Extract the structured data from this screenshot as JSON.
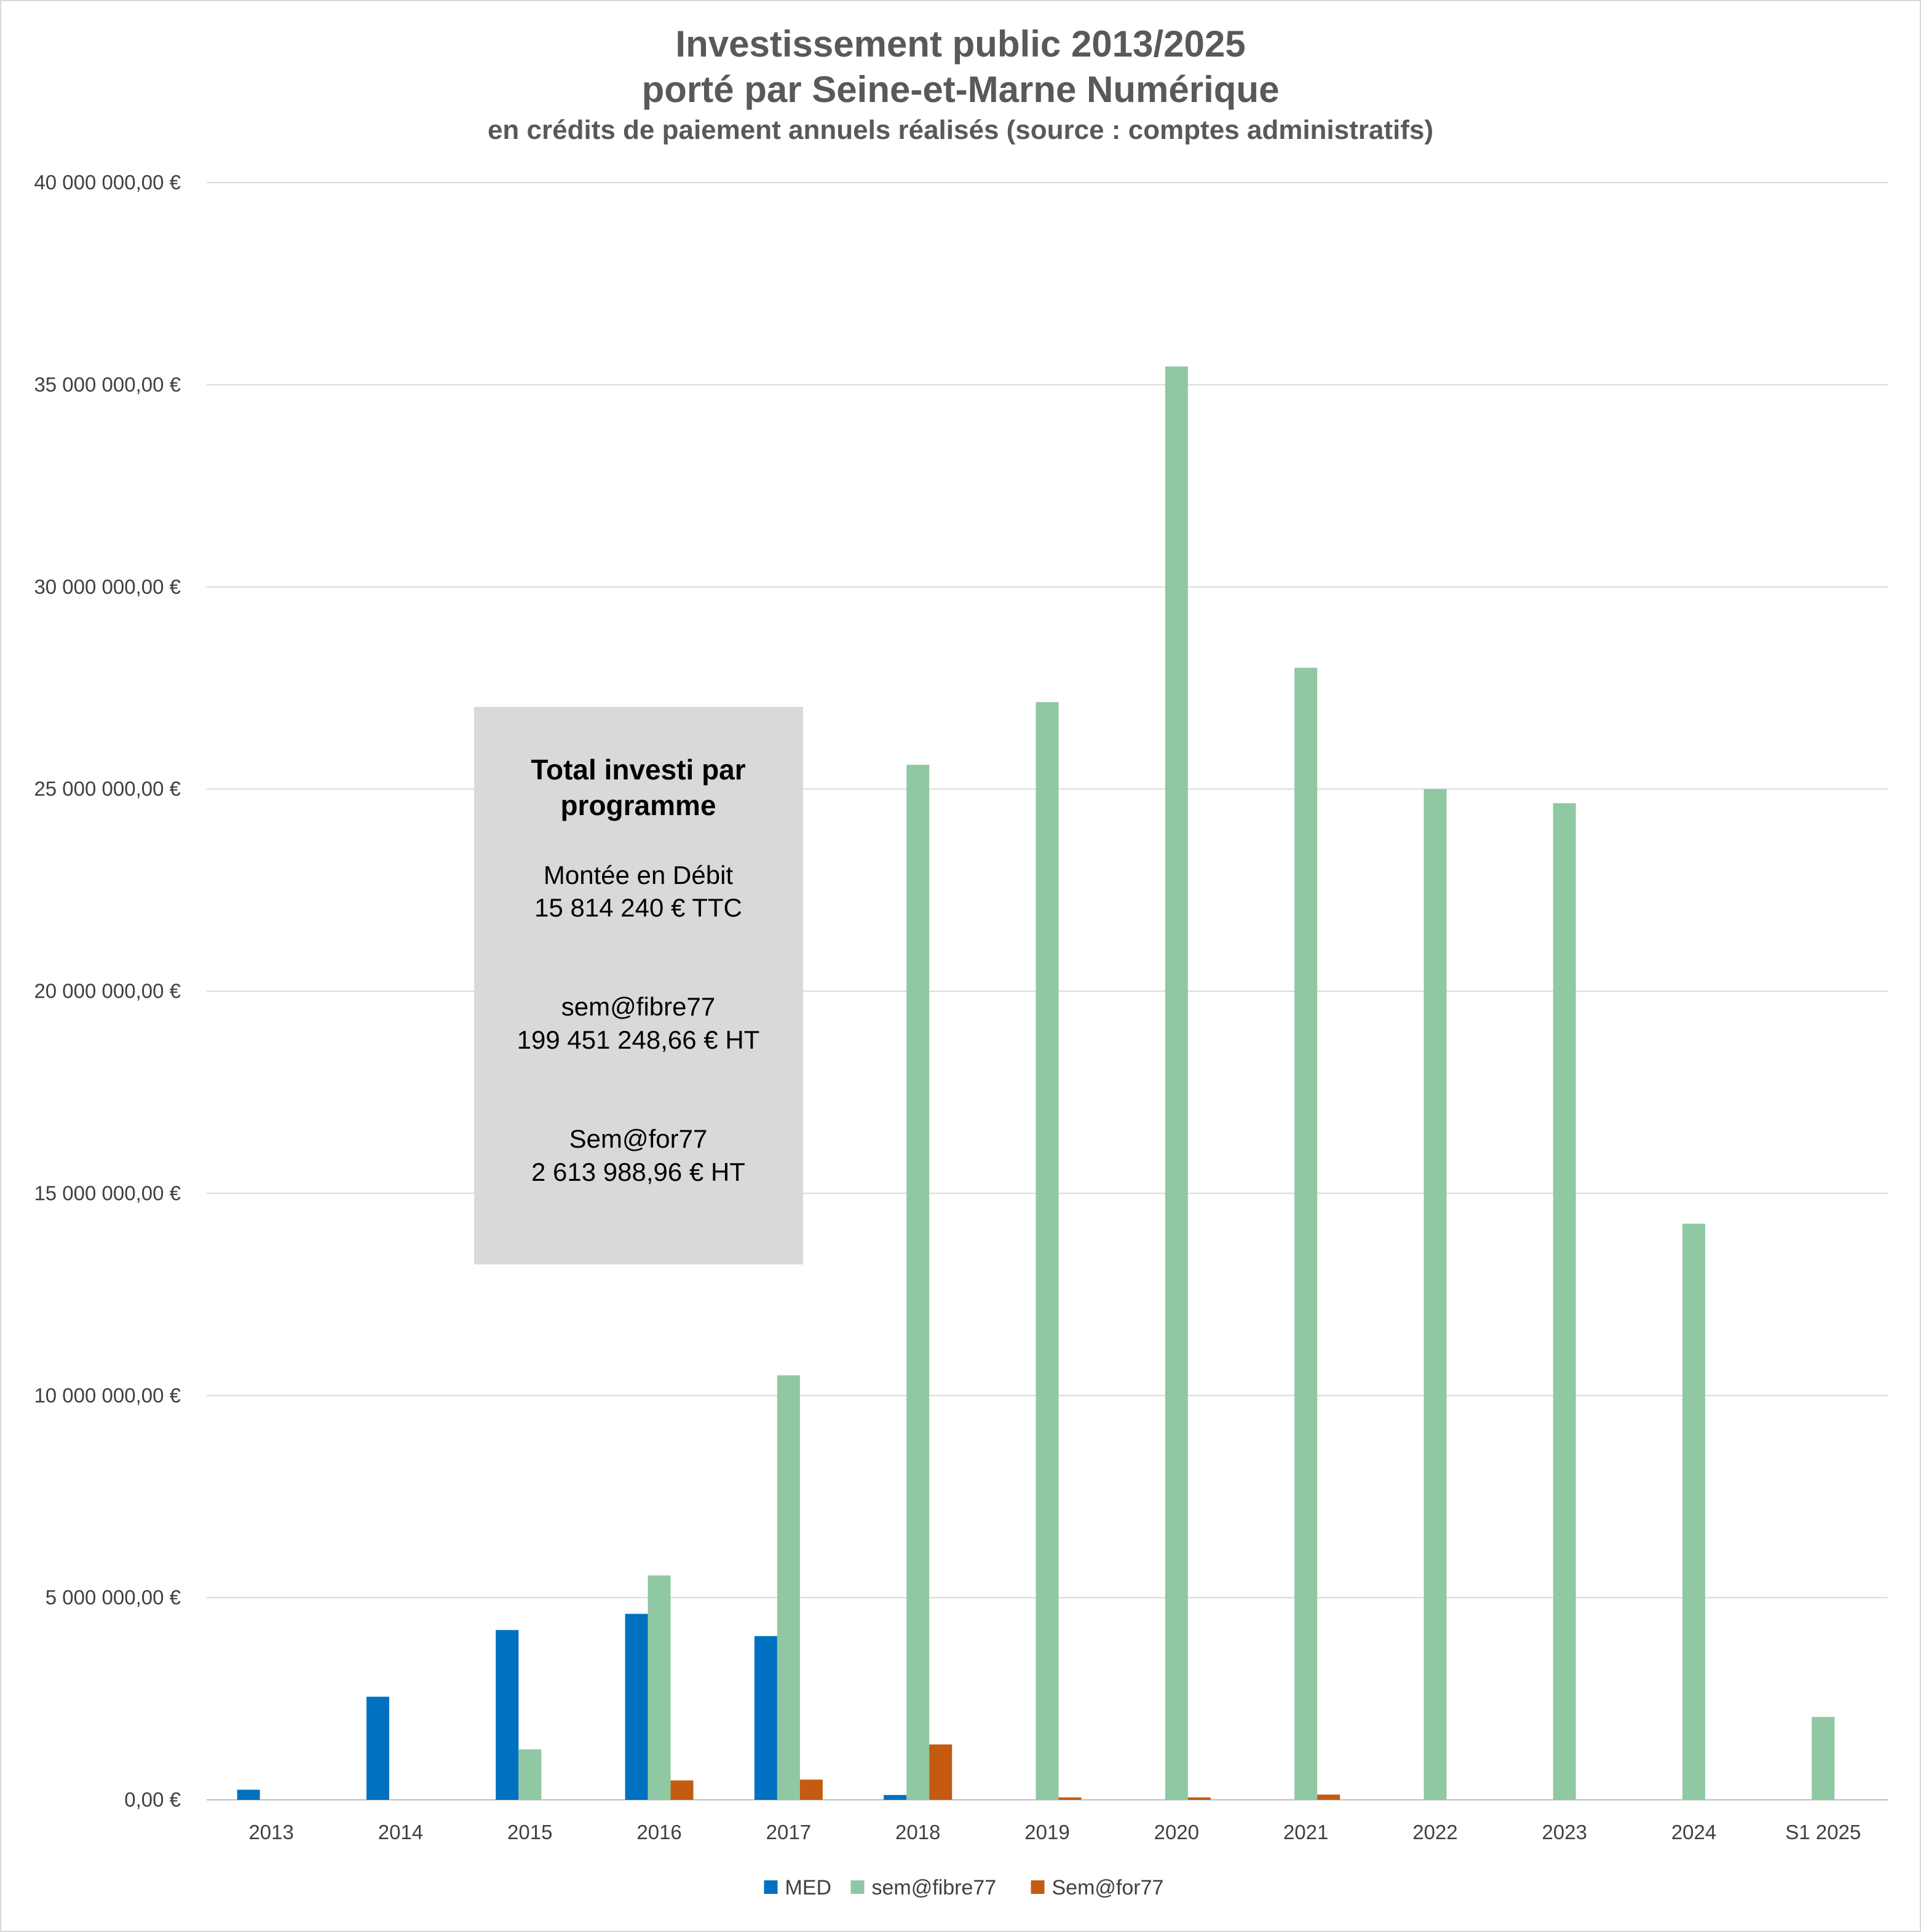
{
  "chart_data": {
    "type": "bar",
    "title_line1": "Investissement public 2013/2025",
    "title_line2": "porté par Seine-et-Marne Numérique",
    "subtitle": "en crédits de paiement annuels réalisés (source : comptes administratifs)",
    "categories": [
      "2013",
      "2014",
      "2015",
      "2016",
      "2017",
      "2018",
      "2019",
      "2020",
      "2021",
      "2022",
      "2023",
      "2024",
      "S1 2025"
    ],
    "series": [
      {
        "name": "MED",
        "color": "#0070c0",
        "values": [
          250000,
          2550000,
          4200000,
          4600000,
          4050000,
          120000,
          0,
          0,
          0,
          0,
          0,
          0,
          0
        ]
      },
      {
        "name": "sem@fibre77",
        "color": "#8fc8a3",
        "values": [
          0,
          0,
          1250000,
          5550000,
          10500000,
          25600000,
          27150000,
          35450000,
          28000000,
          25000000,
          24650000,
          14250000,
          2050000
        ]
      },
      {
        "name": "Sem@for77",
        "color": "#c55a11",
        "values": [
          0,
          0,
          0,
          480000,
          500000,
          1370000,
          60000,
          60000,
          130000,
          0,
          0,
          0,
          0
        ]
      }
    ],
    "yticks": [
      "0,00 €",
      "5 000 000,00 €",
      "10 000 000,00 €",
      "15 000 000,00 €",
      "20 000 000,00 €",
      "25 000 000,00 €",
      "30 000 000,00 €",
      "35 000 000,00 €",
      "40 000 000,00 €"
    ],
    "ylim": [
      0,
      40000000
    ],
    "ystep": 5000000,
    "grid": true,
    "legend_position": "bottom",
    "annotation": {
      "heading_line1": "Total investi par",
      "heading_line2": "programme",
      "med_name": "Montée en Débit",
      "med_total": "15 814 240 € TTC",
      "fibre_name": "sem@fibre77",
      "fibre_total": "199 451 248,66 €  HT",
      "for_name": "Sem@for77",
      "for_total": "2 613 988,96 € HT"
    }
  }
}
